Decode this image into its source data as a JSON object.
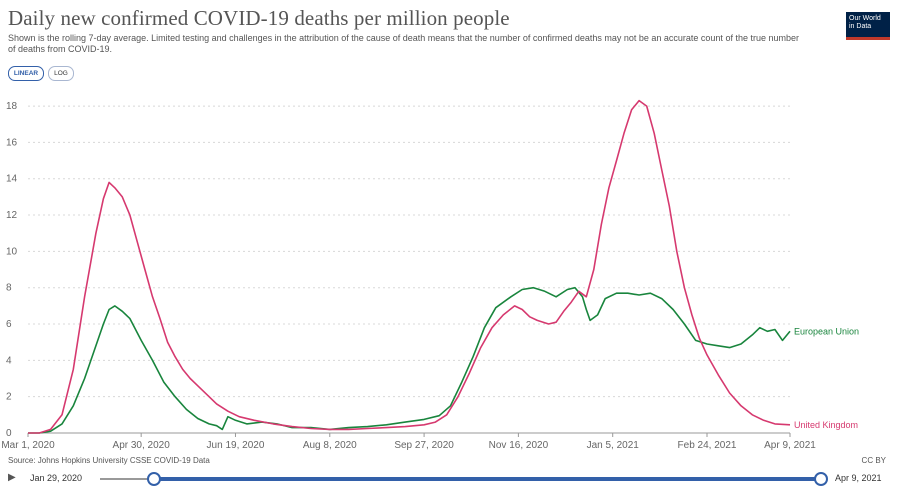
{
  "header": {
    "title": "Daily new confirmed COVID-19 deaths per million people",
    "subtitle": "Shown is the rolling 7-day average. Limited testing and challenges in the attribution of the cause of death means that the number of confirmed deaths may not be an accurate count of the true number of deaths from COVID-19.",
    "logo_text": "Our World in Data"
  },
  "toggles": {
    "linear_label": "LINEAR",
    "log_label": "LOG"
  },
  "footer": {
    "source": "Source: Johns Hopkins University CSSE COVID-19 Data",
    "license": "CC BY"
  },
  "timeline": {
    "start_label": "Jan 29, 2020",
    "end_label": "Apr 9, 2021",
    "play_icon": "play-icon"
  },
  "colors": {
    "eu": "#19853d",
    "uk": "#d6396f",
    "grid": "#d8d8d8",
    "axis": "#666666",
    "accent": "#3360a9"
  },
  "chart_data": {
    "type": "line",
    "title": "Daily new confirmed COVID-19 deaths per million people",
    "xlabel": "",
    "ylabel": "",
    "x_domain": [
      0,
      404
    ],
    "ylim": [
      0,
      18.5
    ],
    "y_ticks": [
      0,
      2,
      4,
      6,
      8,
      10,
      12,
      14,
      16,
      18
    ],
    "x_ticks": [
      {
        "day": 0,
        "label": "Mar 1, 2020"
      },
      {
        "day": 60,
        "label": "Apr 30, 2020"
      },
      {
        "day": 110,
        "label": "Jun 19, 2020"
      },
      {
        "day": 160,
        "label": "Aug 8, 2020"
      },
      {
        "day": 210,
        "label": "Sep 27, 2020"
      },
      {
        "day": 260,
        "label": "Nov 16, 2020"
      },
      {
        "day": 310,
        "label": "Jan 5, 2021"
      },
      {
        "day": 360,
        "label": "Feb 24, 2021"
      },
      {
        "day": 404,
        "label": "Apr 9, 2021"
      }
    ],
    "series": [
      {
        "name": "European Union",
        "points": [
          [
            0,
            0
          ],
          [
            6,
            0
          ],
          [
            12,
            0.1
          ],
          [
            18,
            0.5
          ],
          [
            24,
            1.5
          ],
          [
            30,
            3
          ],
          [
            36,
            4.8
          ],
          [
            40,
            6
          ],
          [
            43,
            6.8
          ],
          [
            46,
            7
          ],
          [
            50,
            6.7
          ],
          [
            54,
            6.3
          ],
          [
            60,
            5.1
          ],
          [
            66,
            4
          ],
          [
            72,
            2.8
          ],
          [
            78,
            2
          ],
          [
            84,
            1.3
          ],
          [
            90,
            0.8
          ],
          [
            96,
            0.5
          ],
          [
            100,
            0.4
          ],
          [
            103,
            0.2
          ],
          [
            106,
            0.9
          ],
          [
            110,
            0.7
          ],
          [
            116,
            0.5
          ],
          [
            124,
            0.6
          ],
          [
            132,
            0.5
          ],
          [
            140,
            0.3
          ],
          [
            150,
            0.3
          ],
          [
            160,
            0.2
          ],
          [
            170,
            0.3
          ],
          [
            180,
            0.35
          ],
          [
            190,
            0.45
          ],
          [
            200,
            0.6
          ],
          [
            210,
            0.75
          ],
          [
            218,
            0.95
          ],
          [
            224,
            1.5
          ],
          [
            230,
            2.8
          ],
          [
            236,
            4.2
          ],
          [
            242,
            5.8
          ],
          [
            248,
            6.9
          ],
          [
            256,
            7.5
          ],
          [
            262,
            7.9
          ],
          [
            268,
            8
          ],
          [
            274,
            7.8
          ],
          [
            280,
            7.5
          ],
          [
            286,
            7.9
          ],
          [
            290,
            8
          ],
          [
            294,
            7.5
          ],
          [
            296,
            6.8
          ],
          [
            298,
            6.2
          ],
          [
            302,
            6.5
          ],
          [
            306,
            7.4
          ],
          [
            312,
            7.7
          ],
          [
            318,
            7.7
          ],
          [
            324,
            7.6
          ],
          [
            330,
            7.7
          ],
          [
            336,
            7.4
          ],
          [
            342,
            6.8
          ],
          [
            348,
            6
          ],
          [
            354,
            5.1
          ],
          [
            360,
            4.9
          ],
          [
            366,
            4.8
          ],
          [
            372,
            4.7
          ],
          [
            378,
            4.9
          ],
          [
            384,
            5.4
          ],
          [
            388,
            5.8
          ],
          [
            392,
            5.6
          ],
          [
            396,
            5.7
          ],
          [
            400,
            5.1
          ],
          [
            404,
            5.6
          ]
        ]
      },
      {
        "name": "United Kingdom",
        "points": [
          [
            0,
            0
          ],
          [
            6,
            0
          ],
          [
            12,
            0.2
          ],
          [
            18,
            1
          ],
          [
            24,
            3.5
          ],
          [
            30,
            7.5
          ],
          [
            36,
            11
          ],
          [
            40,
            12.9
          ],
          [
            43,
            13.8
          ],
          [
            46,
            13.5
          ],
          [
            50,
            13
          ],
          [
            54,
            12
          ],
          [
            58,
            10.5
          ],
          [
            62,
            9
          ],
          [
            66,
            7.5
          ],
          [
            70,
            6.3
          ],
          [
            74,
            5
          ],
          [
            78,
            4.2
          ],
          [
            82,
            3.5
          ],
          [
            86,
            3
          ],
          [
            90,
            2.6
          ],
          [
            96,
            2
          ],
          [
            100,
            1.6
          ],
          [
            106,
            1.2
          ],
          [
            112,
            0.9
          ],
          [
            120,
            0.7
          ],
          [
            130,
            0.5
          ],
          [
            140,
            0.35
          ],
          [
            150,
            0.25
          ],
          [
            160,
            0.2
          ],
          [
            170,
            0.2
          ],
          [
            180,
            0.25
          ],
          [
            190,
            0.3
          ],
          [
            200,
            0.35
          ],
          [
            210,
            0.45
          ],
          [
            216,
            0.6
          ],
          [
            222,
            1
          ],
          [
            228,
            2
          ],
          [
            234,
            3.3
          ],
          [
            240,
            4.7
          ],
          [
            246,
            5.8
          ],
          [
            252,
            6.5
          ],
          [
            258,
            7
          ],
          [
            262,
            6.8
          ],
          [
            266,
            6.4
          ],
          [
            270,
            6.2
          ],
          [
            276,
            6
          ],
          [
            280,
            6.1
          ],
          [
            284,
            6.7
          ],
          [
            288,
            7.2
          ],
          [
            292,
            7.8
          ],
          [
            296,
            7.5
          ],
          [
            300,
            9
          ],
          [
            304,
            11.5
          ],
          [
            308,
            13.5
          ],
          [
            312,
            15
          ],
          [
            316,
            16.5
          ],
          [
            320,
            17.8
          ],
          [
            324,
            18.3
          ],
          [
            328,
            18
          ],
          [
            332,
            16.5
          ],
          [
            336,
            14.5
          ],
          [
            340,
            12.5
          ],
          [
            344,
            10
          ],
          [
            348,
            8
          ],
          [
            352,
            6.5
          ],
          [
            356,
            5.2
          ],
          [
            360,
            4.3
          ],
          [
            366,
            3.2
          ],
          [
            372,
            2.2
          ],
          [
            378,
            1.5
          ],
          [
            384,
            1
          ],
          [
            390,
            0.7
          ],
          [
            396,
            0.5
          ],
          [
            404,
            0.45
          ]
        ]
      }
    ]
  }
}
